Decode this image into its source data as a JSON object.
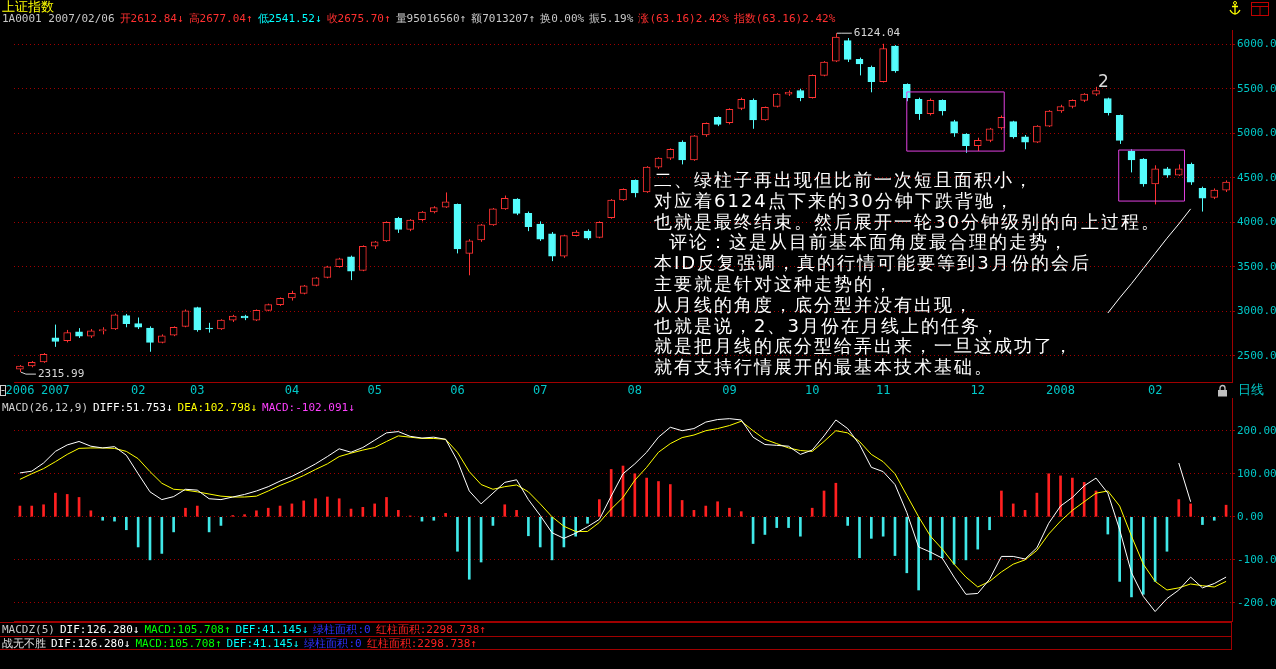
{
  "chart_data": [
    {
      "type": "candlestick",
      "title": "上证指数",
      "subtitle": "1A0001 2007/02/06",
      "annotations": [
        "开2612.84↓",
        "高2677.04↑",
        "低2541.52↓",
        "收2675.70↑",
        "量95016560↑",
        "额7013207↑",
        "换0.00%",
        "振5.19%",
        "涨(63.16)2.42%",
        "指数(63.16)2.42%",
        "6124.04",
        "2315.99",
        "2",
        "二、绿柱子再出现但比前一次短且面积小，",
        "对应着6124点下来的30分钟下跌背驰，",
        "也就是最终结束。然后展开一轮30分钟级别的向上过程。",
        "  评论：这是从目前基本面角度最合理的走势，",
        "本ID反复强调，真的行情可能要等到3月份的会后",
        "主要就是针对这种走势的，",
        "从月线的角度，底分型并没有出现，",
        "也就是说，2、3月份在月线上的任务，",
        "就是把月线的底分型给弄出来，一旦这成功了，",
        "就有支持行情展开的最基本技术基础。",
        "日线"
      ],
      "categories": [
        "2006",
        null,
        null,
        "2007",
        null,
        null,
        null,
        null,
        null,
        null,
        "02",
        null,
        null,
        null,
        null,
        "03",
        null,
        null,
        null,
        null,
        null,
        null,
        null,
        "04",
        null,
        null,
        null,
        null,
        null,
        null,
        "05",
        null,
        null,
        null,
        null,
        null,
        null,
        "06",
        null,
        null,
        null,
        null,
        null,
        null,
        "07",
        null,
        null,
        null,
        null,
        null,
        null,
        null,
        "08",
        null,
        null,
        null,
        null,
        null,
        null,
        null,
        "09",
        null,
        null,
        null,
        null,
        null,
        null,
        "10",
        null,
        null,
        null,
        null,
        null,
        "11",
        null,
        null,
        null,
        null,
        null,
        null,
        null,
        "12",
        null,
        null,
        null,
        null,
        null,
        null,
        "2008",
        null,
        null,
        null,
        null,
        null,
        null,
        null,
        "02",
        null,
        null,
        null,
        null,
        null,
        null
      ],
      "ohlc": [
        [
          2350,
          2395,
          2315.99,
          2385
        ],
        [
          2385,
          2440,
          2370,
          2425
        ],
        [
          2430,
          2530,
          2420,
          2515
        ],
        [
          2700,
          2850,
          2600,
          2660
        ],
        [
          2670,
          2790,
          2650,
          2760
        ],
        [
          2770,
          2810,
          2700,
          2720
        ],
        [
          2720,
          2800,
          2700,
          2780
        ],
        [
          2780,
          2820,
          2740,
          2795
        ],
        [
          2800,
          2975,
          2790,
          2960
        ],
        [
          2950,
          2970,
          2820,
          2860
        ],
        [
          2860,
          2930,
          2800,
          2820
        ],
        [
          2810,
          2830,
          2545,
          2650
        ],
        [
          2650,
          2740,
          2640,
          2725
        ],
        [
          2730,
          2830,
          2720,
          2820
        ],
        [
          2830,
          3020,
          2820,
          3005
        ],
        [
          3040,
          3050,
          2770,
          2790
        ],
        [
          2810,
          2870,
          2760,
          2800
        ],
        [
          2800,
          2910,
          2790,
          2900
        ],
        [
          2900,
          2960,
          2880,
          2945
        ],
        [
          2945,
          2960,
          2900,
          2925
        ],
        [
          2900,
          3020,
          2890,
          3010
        ],
        [
          3010,
          3085,
          3000,
          3075
        ],
        [
          3075,
          3155,
          3060,
          3145
        ],
        [
          3150,
          3230,
          3120,
          3200
        ],
        [
          3200,
          3295,
          3190,
          3285
        ],
        [
          3290,
          3385,
          3280,
          3375
        ],
        [
          3380,
          3510,
          3370,
          3500
        ],
        [
          3500,
          3600,
          3490,
          3590
        ],
        [
          3610,
          3625,
          3350,
          3450
        ],
        [
          3460,
          3740,
          3450,
          3730
        ],
        [
          3730,
          3790,
          3700,
          3780
        ],
        [
          3790,
          4010,
          3780,
          4000
        ],
        [
          4045,
          4060,
          3880,
          3920
        ],
        [
          3920,
          4035,
          3900,
          4025
        ],
        [
          4030,
          4125,
          4010,
          4115
        ],
        [
          4115,
          4180,
          4100,
          4165
        ],
        [
          4170,
          4335,
          4160,
          4230
        ],
        [
          4200,
          4210,
          3650,
          3700
        ],
        [
          3650,
          3810,
          3404,
          3790
        ],
        [
          3800,
          3980,
          3780,
          3970
        ],
        [
          3970,
          4160,
          3960,
          4150
        ],
        [
          4150,
          4300,
          4140,
          4270
        ],
        [
          4260,
          4270,
          4080,
          4100
        ],
        [
          4100,
          4120,
          3900,
          3950
        ],
        [
          3980,
          4010,
          3790,
          3810
        ],
        [
          3870,
          3890,
          3563,
          3620
        ],
        [
          3620,
          3860,
          3600,
          3850
        ],
        [
          3850,
          3910,
          3840,
          3890
        ],
        [
          3900,
          3920,
          3800,
          3820
        ],
        [
          3830,
          4010,
          3820,
          4000
        ],
        [
          4050,
          4260,
          4040,
          4250
        ],
        [
          4250,
          4380,
          4240,
          4370
        ],
        [
          4470,
          4480,
          4280,
          4330
        ],
        [
          4340,
          4630,
          4330,
          4620
        ],
        [
          4620,
          4730,
          4600,
          4720
        ],
        [
          4720,
          4830,
          4700,
          4820
        ],
        [
          4900,
          4920,
          4650,
          4700
        ],
        [
          4700,
          4980,
          4690,
          4970
        ],
        [
          4980,
          5120,
          4960,
          5110
        ],
        [
          5180,
          5190,
          5080,
          5100
        ],
        [
          5120,
          5280,
          5100,
          5270
        ],
        [
          5280,
          5400,
          5260,
          5380
        ],
        [
          5370,
          5390,
          5050,
          5150
        ],
        [
          5150,
          5300,
          5140,
          5290
        ],
        [
          5300,
          5450,
          5290,
          5440
        ],
        [
          5440,
          5480,
          5420,
          5460
        ],
        [
          5480,
          5500,
          5360,
          5400
        ],
        [
          5400,
          5660,
          5390,
          5650
        ],
        [
          5650,
          5810,
          5640,
          5800
        ],
        [
          5810,
          6124.04,
          5800,
          6080
        ],
        [
          6040,
          6070,
          5800,
          5830
        ],
        [
          5830,
          5850,
          5650,
          5780
        ],
        [
          5740,
          5760,
          5460,
          5580
        ],
        [
          5580,
          6005,
          5570,
          5950
        ],
        [
          5980,
          5990,
          5680,
          5700
        ],
        [
          5550,
          5560,
          5360,
          5400
        ],
        [
          5380,
          5400,
          5150,
          5220
        ],
        [
          5220,
          5390,
          5200,
          5370
        ],
        [
          5370,
          5380,
          5200,
          5250
        ],
        [
          5130,
          5150,
          4960,
          5000
        ],
        [
          4990,
          5000,
          4780,
          4860
        ],
        [
          4860,
          4950,
          4800,
          4920
        ],
        [
          4920,
          5060,
          4900,
          5050
        ],
        [
          5060,
          5200,
          5040,
          5180
        ],
        [
          5130,
          5140,
          4940,
          4960
        ],
        [
          4960,
          4980,
          4820,
          4900
        ],
        [
          4900,
          5090,
          4890,
          5080
        ],
        [
          5080,
          5260,
          5070,
          5250
        ],
        [
          5250,
          5320,
          5230,
          5300
        ],
        [
          5300,
          5380,
          5280,
          5370
        ],
        [
          5370,
          5450,
          5350,
          5440
        ],
        [
          5440,
          5522,
          5420,
          5480
        ],
        [
          5390,
          5400,
          5200,
          5230
        ],
        [
          5200,
          5210,
          4880,
          4920
        ],
        [
          4800,
          4820,
          4560,
          4700
        ],
        [
          4710,
          4720,
          4400,
          4430
        ],
        [
          4430,
          4640,
          4200,
          4600
        ],
        [
          4600,
          4620,
          4500,
          4530
        ],
        [
          4530,
          4650,
          4520,
          4600
        ],
        [
          4650,
          4670,
          4420,
          4450
        ],
        [
          4380,
          4400,
          4120,
          4270
        ],
        [
          4280,
          4380,
          4260,
          4360
        ],
        [
          4360,
          4470,
          4340,
          4450
        ]
      ],
      "colors": [
        "#ff3232",
        "#ff3232",
        "#ff3232",
        "#54fcfc",
        "#ff3232",
        "#54fcfc",
        "#ff3232",
        "#ff3232",
        "#ff3232",
        "#54fcfc",
        "#54fcfc",
        "#54fcfc",
        "#ff3232",
        "#ff3232",
        "#ff3232",
        "#54fcfc",
        "#54fcfc",
        "#ff3232",
        "#ff3232",
        "#54fcfc",
        "#ff3232",
        "#ff3232",
        "#ff3232",
        "#ff3232",
        "#ff3232",
        "#ff3232",
        "#ff3232",
        "#ff3232",
        "#54fcfc",
        "#ff3232",
        "#ff3232",
        "#ff3232",
        "#54fcfc",
        "#ff3232",
        "#ff3232",
        "#ff3232",
        "#ff3232",
        "#54fcfc",
        "#ff3232",
        "#ff3232",
        "#ff3232",
        "#ff3232",
        "#54fcfc",
        "#54fcfc",
        "#54fcfc",
        "#54fcfc",
        "#ff3232",
        "#ff3232",
        "#54fcfc",
        "#ff3232",
        "#ff3232",
        "#ff3232",
        "#54fcfc",
        "#ff3232",
        "#ff3232",
        "#ff3232",
        "#54fcfc",
        "#ff3232",
        "#ff3232",
        "#54fcfc",
        "#ff3232",
        "#ff3232",
        "#54fcfc",
        "#ff3232",
        "#ff3232",
        "#ff3232",
        "#54fcfc",
        "#ff3232",
        "#ff3232",
        "#ff3232",
        "#54fcfc",
        "#54fcfc",
        "#54fcfc",
        "#ff3232",
        "#54fcfc",
        "#54fcfc",
        "#54fcfc",
        "#ff3232",
        "#54fcfc",
        "#54fcfc",
        "#54fcfc",
        "#ff3232",
        "#ff3232",
        "#ff3232",
        "#54fcfc",
        "#54fcfc",
        "#ff3232",
        "#ff3232",
        "#ff3232",
        "#ff3232",
        "#ff3232",
        "#ff3232",
        "#54fcfc",
        "#54fcfc",
        "#54fcfc",
        "#54fcfc",
        "#ff3232",
        "#54fcfc",
        "#ff3232",
        "#54fcfc",
        "#54fcfc",
        "#ff3232",
        "#ff3232"
      ],
      "series": [
        {
          "type": "line",
          "color": "#ffffff",
          "values": [
            null,
            null,
            null,
            null,
            null,
            null,
            null,
            null,
            null,
            null,
            null,
            null,
            null,
            null,
            null,
            null,
            null,
            null,
            null,
            null,
            null,
            null,
            null,
            null,
            null,
            null,
            null,
            null,
            null,
            null,
            null,
            null,
            null,
            null,
            null,
            null,
            null,
            null,
            null,
            null,
            null,
            null,
            null,
            null,
            null,
            null,
            null,
            null,
            null,
            null,
            null,
            null,
            null,
            null,
            null,
            null,
            null,
            null,
            null,
            null,
            null,
            null,
            null,
            null,
            null,
            null,
            null,
            null,
            null,
            null,
            null,
            null,
            null,
            null,
            null,
            null,
            null,
            null,
            null,
            null,
            null,
            null,
            null,
            null,
            null,
            null,
            null,
            null,
            null,
            null,
            null,
            null,
            2980,
            3150,
            3310,
            3480,
            3650,
            3820,
            3980,
            4150,
            null,
            null,
            null
          ]
        }
      ],
      "ylim": [
        2205,
        6160
      ],
      "yticks": [
        {
          "value": 2500,
          "label": "2500.0"
        },
        {
          "value": 3000,
          "label": "3000.0"
        },
        {
          "value": 3500,
          "label": "3500.0"
        },
        {
          "value": 4000,
          "label": "4000.0"
        },
        {
          "value": 4500,
          "label": "4500.0"
        },
        {
          "value": 5000,
          "label": "5000.0"
        },
        {
          "value": 5500,
          "label": "5500.0"
        },
        {
          "value": 6000,
          "label": "6000.0"
        }
      ],
      "grid": "y"
    },
    {
      "type": "bar",
      "title": "MACD(26,12,9)",
      "annotations": [
        "DIFF:51.753↓",
        "DEA:102.798↓",
        "MACD:-102.091↓",
        "MACDZ(5)",
        "DIF:126.280↓",
        "MACD:105.708↑",
        "DEF:41.145↓",
        "绿柱面积:0",
        "红柱面积:2298.738↑",
        "战无不胜",
        "DIF:126.280↓",
        "MACD:105.708↑",
        "DEF:41.145↓",
        "绿柱面积:0",
        "红柱面积:2298.738↑"
      ],
      "categories": [
        "2006",
        null,
        null,
        "2007",
        null,
        null,
        null,
        null,
        null,
        null,
        "02",
        null,
        null,
        null,
        null,
        "03",
        null,
        null,
        null,
        null,
        null,
        null,
        null,
        "04",
        null,
        null,
        null,
        null,
        null,
        null,
        "05",
        null,
        null,
        null,
        null,
        null,
        null,
        "06",
        null,
        null,
        null,
        null,
        null,
        null,
        "07",
        null,
        null,
        null,
        null,
        null,
        null,
        null,
        "08",
        null,
        null,
        null,
        null,
        null,
        null,
        null,
        "09",
        null,
        null,
        null,
        null,
        null,
        null,
        "10",
        null,
        null,
        null,
        null,
        null,
        "11",
        null,
        null,
        null,
        null,
        null,
        null,
        null,
        "12",
        null,
        null,
        null,
        null,
        null,
        null,
        "2008",
        null,
        null,
        null,
        null,
        null,
        null,
        null,
        "02",
        null,
        null,
        null,
        null,
        null,
        null
      ],
      "series": [
        {
          "type": "bar",
          "colors": [
            "#ff2020",
            "#ff2020",
            "#ff2020",
            "#ff2020",
            "#ff2020",
            "#ff2020",
            "#ff2020",
            "#40e8e8",
            "#40e8e8",
            "#40e8e8",
            "#40e8e8",
            "#40e8e8",
            "#40e8e8",
            "#40e8e8",
            "#ff2020",
            "#ff2020",
            "#40e8e8",
            "#40e8e8",
            "#ff2020",
            "#ff2020",
            "#ff2020",
            "#ff2020",
            "#ff2020",
            "#ff2020",
            "#ff2020",
            "#ff2020",
            "#ff2020",
            "#ff2020",
            "#ff2020",
            "#ff2020",
            "#ff2020",
            "#ff2020",
            "#ff2020",
            "#ff2020",
            "#40e8e8",
            "#40e8e8",
            "#ff2020",
            "#40e8e8",
            "#40e8e8",
            "#40e8e8",
            "#40e8e8",
            "#ff2020",
            "#ff2020",
            "#40e8e8",
            "#40e8e8",
            "#40e8e8",
            "#40e8e8",
            "#40e8e8",
            "#40e8e8",
            "#ff2020",
            "#ff2020",
            "#ff2020",
            "#ff2020",
            "#ff2020",
            "#ff2020",
            "#ff2020",
            "#ff2020",
            "#ff2020",
            "#ff2020",
            "#ff2020",
            "#ff2020",
            "#ff2020",
            "#40e8e8",
            "#40e8e8",
            "#40e8e8",
            "#40e8e8",
            "#40e8e8",
            "#ff2020",
            "#ff2020",
            "#ff2020",
            "#40e8e8",
            "#40e8e8",
            "#40e8e8",
            "#40e8e8",
            "#40e8e8",
            "#40e8e8",
            "#40e8e8",
            "#40e8e8",
            "#40e8e8",
            "#40e8e8",
            "#40e8e8",
            "#40e8e8",
            "#40e8e8",
            "#ff2020",
            "#ff2020",
            "#ff2020",
            "#ff2020",
            "#ff2020",
            "#ff2020",
            "#ff2020",
            "#ff2020",
            "#ff2020",
            "#40e8e8",
            "#40e8e8",
            "#40e8e8",
            "#40e8e8",
            "#40e8e8",
            "#40e8e8",
            "#ff2020",
            "#ff2020",
            "#40e8e8",
            "#40e8e8",
            "#ff2020"
          ],
          "values": [
            25,
            25,
            28,
            55,
            52,
            45,
            14,
            -8,
            -10,
            -30,
            -70,
            -100,
            -85,
            -35,
            20,
            25,
            -35,
            -20,
            3,
            5,
            14,
            20,
            25,
            30,
            37,
            42,
            46,
            42,
            18,
            22,
            30,
            45,
            15,
            2,
            -10,
            -8,
            8,
            -80,
            -145,
            -105,
            -20,
            28,
            15,
            -44,
            -70,
            -100,
            -70,
            -45,
            -15,
            40,
            110,
            118,
            100,
            90,
            82,
            75,
            38,
            15,
            25,
            35,
            20,
            12,
            -62,
            -41,
            -25,
            -25,
            -45,
            20,
            60,
            78,
            -20,
            -95,
            -50,
            -45,
            -90,
            -130,
            -170,
            -100,
            -95,
            -110,
            -100,
            -75,
            -30,
            60,
            30,
            15,
            55,
            100,
            95,
            90,
            80,
            60,
            -40,
            -150,
            -186,
            -180,
            -150,
            -80,
            40,
            30,
            -18,
            -8,
            27
          ]
        },
        {
          "type": "line",
          "color": "#ffffff",
          "values": [
            102,
            106,
            125,
            152,
            167,
            175,
            164,
            160,
            163,
            143,
            100,
            58,
            40,
            47,
            64,
            62,
            42,
            40,
            46,
            52,
            60,
            70,
            83,
            94,
            108,
            123,
            140,
            158,
            150,
            161,
            178,
            195,
            198,
            187,
            183,
            185,
            180,
            130,
            60,
            30,
            55,
            80,
            86,
            40,
            3,
            -37,
            -50,
            -38,
            -23,
            -6,
            48,
            100,
            123,
            150,
            185,
            208,
            200,
            205,
            220,
            226,
            228,
            225,
            185,
            168,
            166,
            164,
            145,
            155,
            188,
            225,
            205,
            168,
            115,
            105,
            75,
            10,
            -70,
            -82,
            -96,
            -140,
            -180,
            -178,
            -145,
            -92,
            -92,
            -98,
            -72,
            -15,
            25,
            45,
            72,
            90,
            55,
            -30,
            -130,
            -185,
            -220,
            -190,
            -170,
            -140,
            -165,
            -155,
            -140
          ]
        },
        {
          "type": "line",
          "color": "#ffff00",
          "values": [
            87,
            100,
            112,
            128,
            145,
            159,
            160,
            160,
            159,
            152,
            135,
            105,
            78,
            64,
            62,
            58,
            53,
            48,
            46,
            46,
            48,
            60,
            73,
            84,
            96,
            110,
            123,
            140,
            148,
            155,
            161,
            175,
            188,
            185,
            182,
            182,
            180,
            150,
            105,
            75,
            64,
            70,
            74,
            58,
            30,
            0,
            -22,
            -34,
            -34,
            -13,
            18,
            45,
            85,
            115,
            150,
            170,
            184,
            190,
            200,
            205,
            212,
            222,
            200,
            180,
            170,
            160,
            154,
            152,
            175,
            200,
            195,
            175,
            145,
            128,
            100,
            50,
            0,
            -45,
            -75,
            -110,
            -140,
            -163,
            -150,
            -128,
            -110,
            -100,
            -78,
            -40,
            -10,
            15,
            35,
            55,
            60,
            25,
            -45,
            -110,
            -150,
            -170,
            -165,
            -156,
            -160,
            -163,
            -150
          ]
        },
        {
          "type": "line",
          "color": "#ffffff",
          "values": [
            null,
            null,
            null,
            null,
            null,
            null,
            null,
            null,
            null,
            null,
            null,
            null,
            null,
            null,
            null,
            null,
            null,
            null,
            null,
            null,
            null,
            null,
            null,
            null,
            null,
            null,
            null,
            null,
            null,
            null,
            null,
            null,
            null,
            null,
            null,
            null,
            null,
            null,
            null,
            null,
            null,
            null,
            null,
            null,
            null,
            null,
            null,
            null,
            null,
            null,
            null,
            null,
            null,
            null,
            null,
            null,
            null,
            null,
            null,
            null,
            null,
            null,
            null,
            null,
            null,
            null,
            null,
            null,
            null,
            null,
            null,
            null,
            null,
            null,
            null,
            null,
            null,
            null,
            null,
            null,
            null,
            null,
            null,
            null,
            null,
            null,
            null,
            null,
            null,
            null,
            null,
            null,
            null,
            null,
            null,
            null,
            null,
            null,
            125,
            35,
            null,
            null,
            null
          ]
        }
      ],
      "ylim": [
        -242,
        276
      ],
      "yticks": [
        {
          "value": -200,
          "label": "-200.0"
        },
        {
          "value": -100,
          "label": "-100.0"
        },
        {
          "value": 0,
          "label": "0.00"
        },
        {
          "value": 100,
          "label": "100.00"
        },
        {
          "value": 200,
          "label": "200.00"
        }
      ],
      "grid": "y",
      "tick_labels": "y",
      "marker": "none"
    }
  ]
}
